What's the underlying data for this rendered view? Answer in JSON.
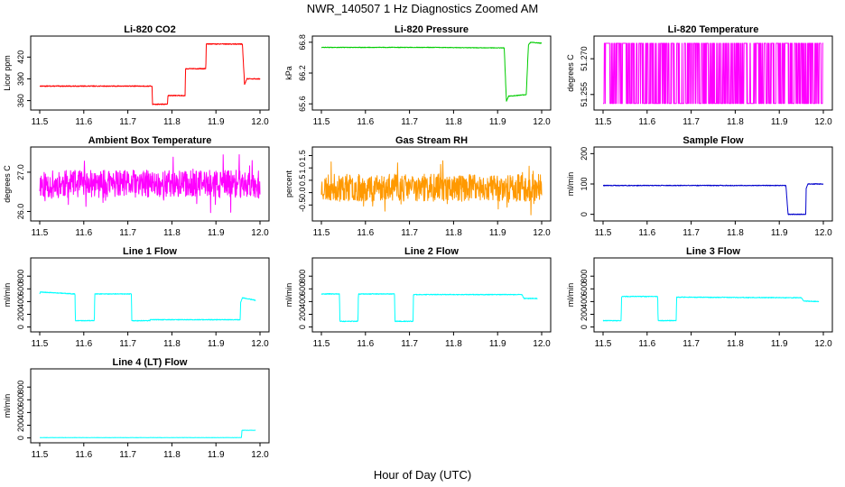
{
  "figure": {
    "title": "NWR_140507  1 Hz Diagnostics Zoomed AM",
    "xlabel": "Hour of Day (UTC)"
  },
  "chart_data": [
    {
      "type": "line",
      "title": "Li-820 CO2",
      "ylabel": "Licor ppm",
      "color": "#ff0000",
      "xlim": [
        11.5,
        12.0
      ],
      "ylim": [
        352,
        444
      ],
      "xticks": [
        "11.5",
        "11.6",
        "11.7",
        "11.8",
        "11.9",
        "12.0"
      ],
      "yticks": [
        {
          "v": 360,
          "label": "360"
        },
        {
          "v": 390,
          "label": "390"
        },
        {
          "v": 420,
          "label": "420"
        }
      ],
      "noise": 0.6,
      "series": [
        {
          "x": [
            11.5,
            11.755,
            11.756,
            11.79,
            11.791,
            11.83,
            11.831,
            11.877,
            11.878,
            11.96,
            11.965,
            11.97,
            12.0
          ],
          "y": [
            380,
            380,
            355,
            355,
            367,
            367,
            404,
            404,
            438,
            438,
            382,
            390,
            390
          ]
        }
      ]
    },
    {
      "type": "line",
      "title": "Li-820 Pressure",
      "ylabel": "kPa",
      "color": "#00cc00",
      "xlim": [
        11.5,
        12.0
      ],
      "ylim": [
        65.55,
        66.85
      ],
      "xticks": [
        "11.5",
        "11.6",
        "11.7",
        "11.8",
        "11.9",
        "12.0"
      ],
      "yticks": [
        {
          "v": 65.6,
          "label": "65.6"
        },
        {
          "v": 66.2,
          "label": "66.2"
        },
        {
          "v": 66.8,
          "label": "66.8"
        }
      ],
      "noise": 0.006,
      "series": [
        {
          "x": [
            11.5,
            11.75,
            11.9,
            11.915,
            11.92,
            11.925,
            11.965,
            11.97,
            11.975,
            12.0
          ],
          "y": [
            66.7,
            66.7,
            66.69,
            66.69,
            65.65,
            65.75,
            65.78,
            66.75,
            66.8,
            66.78
          ]
        }
      ]
    },
    {
      "type": "line",
      "title": "Li-820 Temperature",
      "ylabel": "degrees C",
      "color": "#ff00ff",
      "xlim": [
        11.5,
        12.0
      ],
      "ylim": [
        51.25,
        51.278
      ],
      "xticks": [
        "11.5",
        "11.6",
        "11.7",
        "11.8",
        "11.9",
        "12.0"
      ],
      "yticks": [
        {
          "v": 51.255,
          "label": "51.255"
        },
        {
          "v": 51.27,
          "label": "51.270"
        }
      ],
      "levels": [
        51.2512,
        51.2765
      ],
      "seed": 7
    },
    {
      "type": "line",
      "title": "Ambient Box Temperature",
      "ylabel": "degrees C",
      "color": "#ff00ff",
      "xlim": [
        11.5,
        12.0
      ],
      "ylim": [
        25.85,
        27.55
      ],
      "xticks": [
        "11.5",
        "11.6",
        "11.7",
        "11.8",
        "11.9",
        "12.0"
      ],
      "yticks": [
        {
          "v": 26.0,
          "label": "26.0"
        },
        {
          "v": 27.0,
          "label": "27.0"
        }
      ],
      "noise_band": {
        "center": 26.7,
        "amp": 0.35,
        "spike": 0.75
      },
      "seed": 11
    },
    {
      "type": "line",
      "title": "Gas Stream RH",
      "ylabel": "percent",
      "color": "#ff9900",
      "xlim": [
        11.5,
        12.0
      ],
      "ylim": [
        -1.0,
        1.7
      ],
      "xticks": [
        "11.5",
        "11.6",
        "11.7",
        "11.8",
        "11.9",
        "12.0"
      ],
      "yticks": [
        {
          "v": -0.5,
          "label": "-0.5"
        },
        {
          "v": 0.0,
          "label": "0.0"
        },
        {
          "v": 0.5,
          "label": "0.5"
        },
        {
          "v": 1.0,
          "label": "1.0"
        },
        {
          "v": 1.5,
          "label": "1.5"
        }
      ],
      "noise_band": {
        "center": 0.2,
        "amp": 0.55,
        "spike": 1.2
      },
      "seed": 23
    },
    {
      "type": "line",
      "title": "Sample Flow",
      "ylabel": "ml/min",
      "color": "#0000cc",
      "xlim": [
        11.5,
        12.0
      ],
      "ylim": [
        -10,
        210
      ],
      "xticks": [
        "11.5",
        "11.6",
        "11.7",
        "11.8",
        "11.9",
        "12.0"
      ],
      "yticks": [
        {
          "v": 0,
          "label": "0"
        },
        {
          "v": 100,
          "label": "100"
        },
        {
          "v": 200,
          "label": "200"
        }
      ],
      "noise": 1.2,
      "series": [
        {
          "x": [
            11.5,
            11.915,
            11.92,
            11.96,
            11.961,
            11.965,
            12.0
          ],
          "y": [
            95,
            95,
            0,
            0,
            85,
            100,
            100
          ]
        }
      ]
    },
    {
      "type": "line",
      "title": "Line 1 Flow",
      "ylabel": "ml/min",
      "color": "#00ffff",
      "xlim": [
        11.5,
        12.0
      ],
      "ylim": [
        -20,
        1030
      ],
      "xticks": [
        "11.5",
        "11.6",
        "11.7",
        "11.8",
        "11.9",
        "12.0"
      ],
      "yticks": [
        {
          "v": 0,
          "label": "0"
        },
        {
          "v": 200,
          "label": "200"
        },
        {
          "v": 400,
          "label": "400"
        },
        {
          "v": 600,
          "label": "600"
        },
        {
          "v": 800,
          "label": "800"
        }
      ],
      "noise": 6,
      "series": [
        {
          "x": [
            11.5,
            11.501,
            11.58,
            11.581,
            11.624,
            11.625,
            11.708,
            11.709,
            11.75,
            11.751,
            11.955,
            11.956,
            11.96,
            11.99
          ],
          "y": [
            520,
            550,
            520,
            100,
            100,
            520,
            520,
            100,
            100,
            115,
            115,
            380,
            460,
            420
          ]
        }
      ]
    },
    {
      "type": "line",
      "title": "Line 2 Flow",
      "ylabel": "ml/min",
      "color": "#00ffff",
      "xlim": [
        11.5,
        12.0
      ],
      "ylim": [
        -20,
        1030
      ],
      "xticks": [
        "11.5",
        "11.6",
        "11.7",
        "11.8",
        "11.9",
        "12.0"
      ],
      "yticks": [
        {
          "v": 0,
          "label": "0"
        },
        {
          "v": 200,
          "label": "200"
        },
        {
          "v": 400,
          "label": "400"
        },
        {
          "v": 600,
          "label": "600"
        },
        {
          "v": 800,
          "label": "800"
        }
      ],
      "noise": 6,
      "series": [
        {
          "x": [
            11.5,
            11.541,
            11.542,
            11.583,
            11.584,
            11.666,
            11.667,
            11.708,
            11.709,
            11.955,
            11.96,
            11.99
          ],
          "y": [
            520,
            520,
            90,
            90,
            520,
            520,
            90,
            90,
            510,
            510,
            450,
            450
          ]
        }
      ]
    },
    {
      "type": "line",
      "title": "Line 3 Flow",
      "ylabel": "ml/min",
      "color": "#00ffff",
      "xlim": [
        11.5,
        12.0
      ],
      "ylim": [
        -20,
        1030
      ],
      "xticks": [
        "11.5",
        "11.6",
        "11.7",
        "11.8",
        "11.9",
        "12.0"
      ],
      "yticks": [
        {
          "v": 0,
          "label": "0"
        },
        {
          "v": 200,
          "label": "200"
        },
        {
          "v": 400,
          "label": "400"
        },
        {
          "v": 600,
          "label": "600"
        },
        {
          "v": 800,
          "label": "800"
        }
      ],
      "noise": 6,
      "series": [
        {
          "x": [
            11.5,
            11.541,
            11.542,
            11.624,
            11.625,
            11.666,
            11.667,
            11.95,
            11.955,
            11.99
          ],
          "y": [
            100,
            100,
            480,
            480,
            100,
            100,
            470,
            460,
            410,
            400
          ]
        }
      ]
    },
    {
      "type": "line",
      "title": "Line 4 (LT) Flow",
      "ylabel": "ml/min",
      "color": "#00ffff",
      "xlim": [
        11.5,
        12.0
      ],
      "ylim": [
        -20,
        1030
      ],
      "xticks": [
        "11.5",
        "11.6",
        "11.7",
        "11.8",
        "11.9",
        "12.0"
      ],
      "yticks": [
        {
          "v": 0,
          "label": "0"
        },
        {
          "v": 200,
          "label": "200"
        },
        {
          "v": 400,
          "label": "400"
        },
        {
          "v": 600,
          "label": "600"
        },
        {
          "v": 800,
          "label": "800"
        }
      ],
      "noise": 2,
      "series": [
        {
          "x": [
            11.5,
            11.958,
            11.959,
            11.99
          ],
          "y": [
            5,
            5,
            120,
            120
          ]
        }
      ]
    }
  ]
}
